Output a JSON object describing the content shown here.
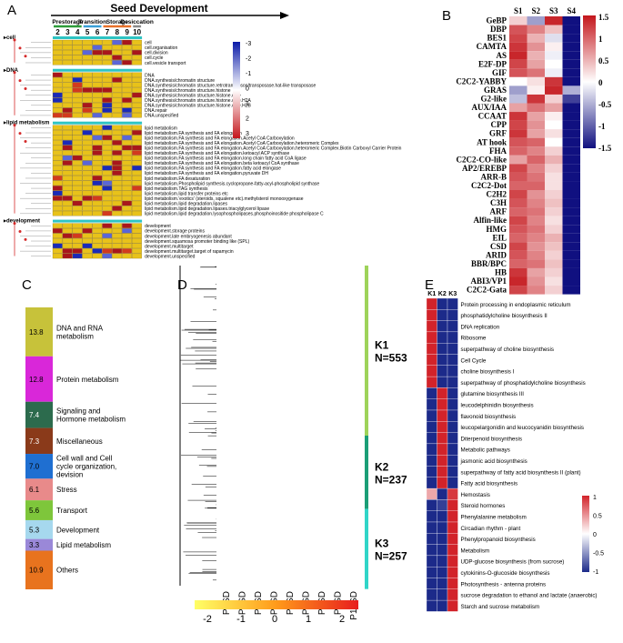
{
  "panels": {
    "A": {
      "label": "A",
      "title": "Seed Development",
      "stages": [
        {
          "name": "Prestorage",
          "color": "#2e9c3a",
          "cols": [
            "2",
            "3",
            "4"
          ]
        },
        {
          "name": "Transition",
          "color": "#3aa0d8",
          "cols": [
            "5",
            "6"
          ]
        },
        {
          "name": "Storage",
          "color": "#e8712a",
          "cols": [
            "7",
            "8",
            "9"
          ]
        },
        {
          "name": "Desiccation",
          "color": "#8a8a8a",
          "cols": [
            "10"
          ]
        }
      ],
      "legend_ticks": [
        "-3",
        "-2",
        "-1",
        "0",
        "1",
        "2",
        "3"
      ],
      "groups": [
        {
          "label": "cell",
          "rows": [
            "cell",
            "cell.organisation",
            "cell.division",
            "cell.cycle",
            "cell.vesicle transport"
          ]
        },
        {
          "label": "DNA",
          "rows": [
            "DNA",
            "DNA.synthesis/chromatin structure",
            "DNA.synthesis/chromatin structure.retrotransposon/transposase.hat-like transposase",
            "DNA.synthesis/chromatin structure.histone",
            "DNA.synthesis/chromatin structure.histone.core",
            "DNA.synthesis/chromatin structure.histone.core.H2A",
            "DNA.synthesis/chromatin structure.histone.core.H2B",
            "DNA.repair",
            "DNA.unspecified"
          ]
        },
        {
          "label": "lipid metabolism",
          "rows": [
            "lipid metabolism",
            "lipid metabolism.FA synthesis and FA elongation",
            "lipid metabolism.FA synthesis and FA elongation.Acetyl CoA Carboxylation",
            "lipid metabolism.FA synthesis and FA elongation.Acetyl CoA Carboxylation.heteromeric Complex",
            "lipid metabolism.FA synthesis and FA elongation.Acetyl CoA Carboxylation.heteromeric Complex.Biotin Carboxyl Carrier Protein",
            "lipid metabolism.FA synthesis and FA elongation.ketoacyl ACP synthase",
            "lipid metabolism.FA synthesis and FA elongation.long chain fatty acid CoA ligase",
            "lipid metabolism.FA synthesis and FA elongation.beta ketoacyl CoA synthase",
            "lipid metabolism.FA synthesis and FA elongation.fatty acid elongase",
            "lipid metabolism.FA synthesis and FA elongation.pyruvate DH",
            "lipid metabolism.FA desaturation",
            "lipid metabolism.Phospholipid synthesis.cyclopropane-fatty-acyl-phospholipid synthase",
            "lipid metabolism.TAG synthesis",
            "lipid metabolism.lipid transfer proteins etc",
            "lipid metabolism.'exotics' (steroids, squalene etc).methylsterol monooxygenase",
            "lipid metabolism.lipid degradation.lipases",
            "lipid metabolism.lipid degradation.lipases.triacylglycerol lipase",
            "lipid metabolism.lipid degradation.lysophospholipases.phosphoinositide phospholipase C"
          ]
        },
        {
          "label": "development",
          "rows": [
            "development",
            "development.storage proteins",
            "development.late embryogenesis abundant",
            "development.squamosa promoter binding like (SPL)",
            "development.multitarget",
            "development.multitarget.target of rapamycin",
            "development.unspecified"
          ]
        }
      ]
    },
    "B": {
      "label": "B",
      "columns": [
        "S1",
        "S2",
        "S3",
        "S4"
      ],
      "legend_ticks": [
        "1.5",
        "1",
        "0.5",
        "0",
        "-0.5",
        "-1",
        "-1.5"
      ],
      "rows": [
        "GeBP",
        "DBP",
        "BES1",
        "CAMTA",
        "AS",
        "E2F-DP",
        "GIF",
        "C2C2-YABBY",
        "GRAS",
        "G2-like",
        "AUX/IAA",
        "CCAAT",
        "CPP",
        "GRF",
        "AT hook",
        "FHA",
        "C2C2-CO-like",
        "AP2/EREBP",
        "ARR-B",
        "C2C2-Dot",
        "C2H2",
        "C3H",
        "ARF",
        "Alfin-like",
        "HMG",
        "EIL",
        "CSD",
        "ARID",
        "BBR/BPC",
        "HB",
        "ABI3/VP1",
        "C2C2-Gata"
      ],
      "values": [
        [
          0.3,
          -0.6,
          1.4,
          -1.5
        ],
        [
          1.1,
          0.8,
          0.4,
          -1.5
        ],
        [
          1.2,
          0.5,
          -0.2,
          -1.5
        ],
        [
          1.3,
          0.7,
          0.1,
          -1.5
        ],
        [
          1.4,
          0.5,
          -0.1,
          -1.5
        ],
        [
          1.2,
          0.6,
          0.0,
          -1.5
        ],
        [
          1.1,
          0.9,
          -0.1,
          -1.5
        ],
        [
          0.0,
          0.2,
          1.3,
          -1.5
        ],
        [
          -0.6,
          0.1,
          1.4,
          -0.5
        ],
        [
          -0.4,
          1.3,
          0.3,
          -1.2
        ],
        [
          0.6,
          0.9,
          0.6,
          -1.5
        ],
        [
          1.3,
          0.6,
          0.1,
          -1.5
        ],
        [
          1.2,
          0.7,
          0.0,
          -1.5
        ],
        [
          1.3,
          0.6,
          0.2,
          -1.5
        ],
        [
          1.1,
          1.0,
          0.0,
          -1.5
        ],
        [
          1.0,
          0.8,
          0.3,
          -1.5
        ],
        [
          0.6,
          1.0,
          0.5,
          -1.5
        ],
        [
          1.2,
          0.8,
          0.3,
          -1.5
        ],
        [
          1.1,
          0.9,
          0.2,
          -1.5
        ],
        [
          1.0,
          1.0,
          0.2,
          -1.5
        ],
        [
          1.2,
          0.7,
          0.3,
          -1.5
        ],
        [
          1.1,
          0.8,
          0.4,
          -1.5
        ],
        [
          1.0,
          0.9,
          0.3,
          -1.5
        ],
        [
          1.2,
          0.8,
          0.2,
          -1.5
        ],
        [
          1.1,
          0.9,
          0.3,
          -1.5
        ],
        [
          1.0,
          0.8,
          0.5,
          -1.5
        ],
        [
          1.2,
          0.7,
          0.4,
          -1.5
        ],
        [
          1.1,
          0.8,
          0.3,
          -1.5
        ],
        [
          1.0,
          0.9,
          0.4,
          -1.5
        ],
        [
          1.3,
          0.6,
          0.3,
          -1.5
        ],
        [
          1.4,
          0.7,
          0.2,
          -1.5
        ],
        [
          1.2,
          0.8,
          0.3,
          -1.5
        ]
      ]
    },
    "C": {
      "label": "C",
      "segments": [
        {
          "value": "13.8",
          "name": "DNA and RNA metabolism",
          "color": "#c7c23a"
        },
        {
          "value": "12.8",
          "name": "Protein metabolism",
          "color": "#d927d9"
        },
        {
          "value": "7.4",
          "name": "Signaling and Hormone metabolism",
          "color": "#2c6b4d"
        },
        {
          "value": "7.3",
          "name": "Miscellaneous",
          "color": "#8a3a1a"
        },
        {
          "value": "7.0",
          "name": "Cell wall and Cell cycle organization, devision",
          "color": "#1f6fd1"
        },
        {
          "value": "6.1",
          "name": "Stress",
          "color": "#e88a8a"
        },
        {
          "value": "5.6",
          "name": "Transport",
          "color": "#7ec63b"
        },
        {
          "value": "5.3",
          "name": "Development",
          "color": "#a6d8ee"
        },
        {
          "value": "3.3",
          "name": "Lipid metabolism",
          "color": "#9a88d8"
        },
        {
          "value": "10.9",
          "name": "Others",
          "color": "#e8731e"
        }
      ]
    },
    "D": {
      "label": "D",
      "columns": [
        "P2SD",
        "P3SD",
        "P4SD",
        "P5SD",
        "P6SD",
        "P7SD",
        "P8SD",
        "P9SD",
        "P10SD"
      ],
      "clusters": [
        {
          "name": "K1",
          "n": "N=553",
          "color": "#9ed35a",
          "count": 553
        },
        {
          "name": "K2",
          "n": "N=237",
          "color": "#1b9e77",
          "count": 237
        },
        {
          "name": "K3",
          "n": "N=257",
          "color": "#30d5c8",
          "count": 257
        }
      ],
      "legend_ticks": [
        "-2",
        "-1",
        "0",
        "1",
        "2"
      ]
    },
    "E": {
      "label": "E",
      "columns": [
        "K1",
        "K2",
        "K3"
      ],
      "legend_ticks": [
        "1",
        "0.5",
        "0",
        "-0.5",
        "-1"
      ],
      "rows": [
        {
          "name": "Protein processing in endoplasmic reticulum",
          "values": [
            1,
            -1,
            -1
          ]
        },
        {
          "name": "phosphatidylcholine biosynthesis II",
          "values": [
            1,
            -1,
            -1
          ]
        },
        {
          "name": "DNA replication",
          "values": [
            1,
            -1,
            -1
          ]
        },
        {
          "name": "Ribosome",
          "values": [
            1,
            -1,
            -1
          ]
        },
        {
          "name": "superpathway of choline biosynthesis",
          "values": [
            1,
            -1,
            -1
          ]
        },
        {
          "name": "Cell Cycle",
          "values": [
            1,
            -1,
            -1
          ]
        },
        {
          "name": "choline biosynthesis I",
          "values": [
            1,
            -1,
            -1
          ]
        },
        {
          "name": "superpathway of phosphatidylcholine biosynthesis",
          "values": [
            1,
            -1,
            -1
          ]
        },
        {
          "name": "glutamine biosynthesis III",
          "values": [
            -1,
            1,
            -1
          ]
        },
        {
          "name": "leucodelphinidin biosynthesis",
          "values": [
            -1,
            1,
            -1
          ]
        },
        {
          "name": "flavonoid biosynthesis",
          "values": [
            -1,
            1,
            -1
          ]
        },
        {
          "name": "leucopelargonidin and leucocyanidin biosynthesis",
          "values": [
            -1,
            1,
            -1
          ]
        },
        {
          "name": "Diterpenoid biosynthesis",
          "values": [
            -1,
            1,
            -1
          ]
        },
        {
          "name": "Metabolic pathways",
          "values": [
            -1,
            1,
            -1
          ]
        },
        {
          "name": "jasmonic acid biosynthesis",
          "values": [
            -1,
            1,
            -1
          ]
        },
        {
          "name": "superpathway of fatty acid biosynthesis II (plant)",
          "values": [
            -1,
            1,
            -1
          ]
        },
        {
          "name": "Fatty acid biosynthesis",
          "values": [
            -1,
            1,
            -1
          ]
        },
        {
          "name": "Hemostasis",
          "values": [
            0.4,
            -1,
            0.9
          ]
        },
        {
          "name": "Steroid hormones",
          "values": [
            -1,
            -0.9,
            1
          ]
        },
        {
          "name": "Phenylalanine metabolism",
          "values": [
            -1,
            -1,
            1
          ]
        },
        {
          "name": "Circadian rhythm - plant",
          "values": [
            -1,
            -1,
            1
          ]
        },
        {
          "name": "Phenylpropanoid biosynthesis",
          "values": [
            -1,
            -1,
            1
          ]
        },
        {
          "name": "Metabolism",
          "values": [
            -1,
            -1,
            1
          ]
        },
        {
          "name": "UDP-glucose biosynthesis (from sucrose)",
          "values": [
            -1,
            -1,
            1
          ]
        },
        {
          "name": "cytokinins-O-glucoside biosynthesis",
          "values": [
            -1,
            -1,
            1
          ]
        },
        {
          "name": "Photosynthesis - antenna proteins",
          "values": [
            -1,
            -1,
            1
          ]
        },
        {
          "name": "sucrose degradation to ethanol and lactate (anaerobic)",
          "values": [
            -1,
            -1,
            1
          ]
        },
        {
          "name": "Starch and sucrose metabolism",
          "values": [
            -1,
            -1,
            1
          ]
        }
      ]
    }
  }
}
